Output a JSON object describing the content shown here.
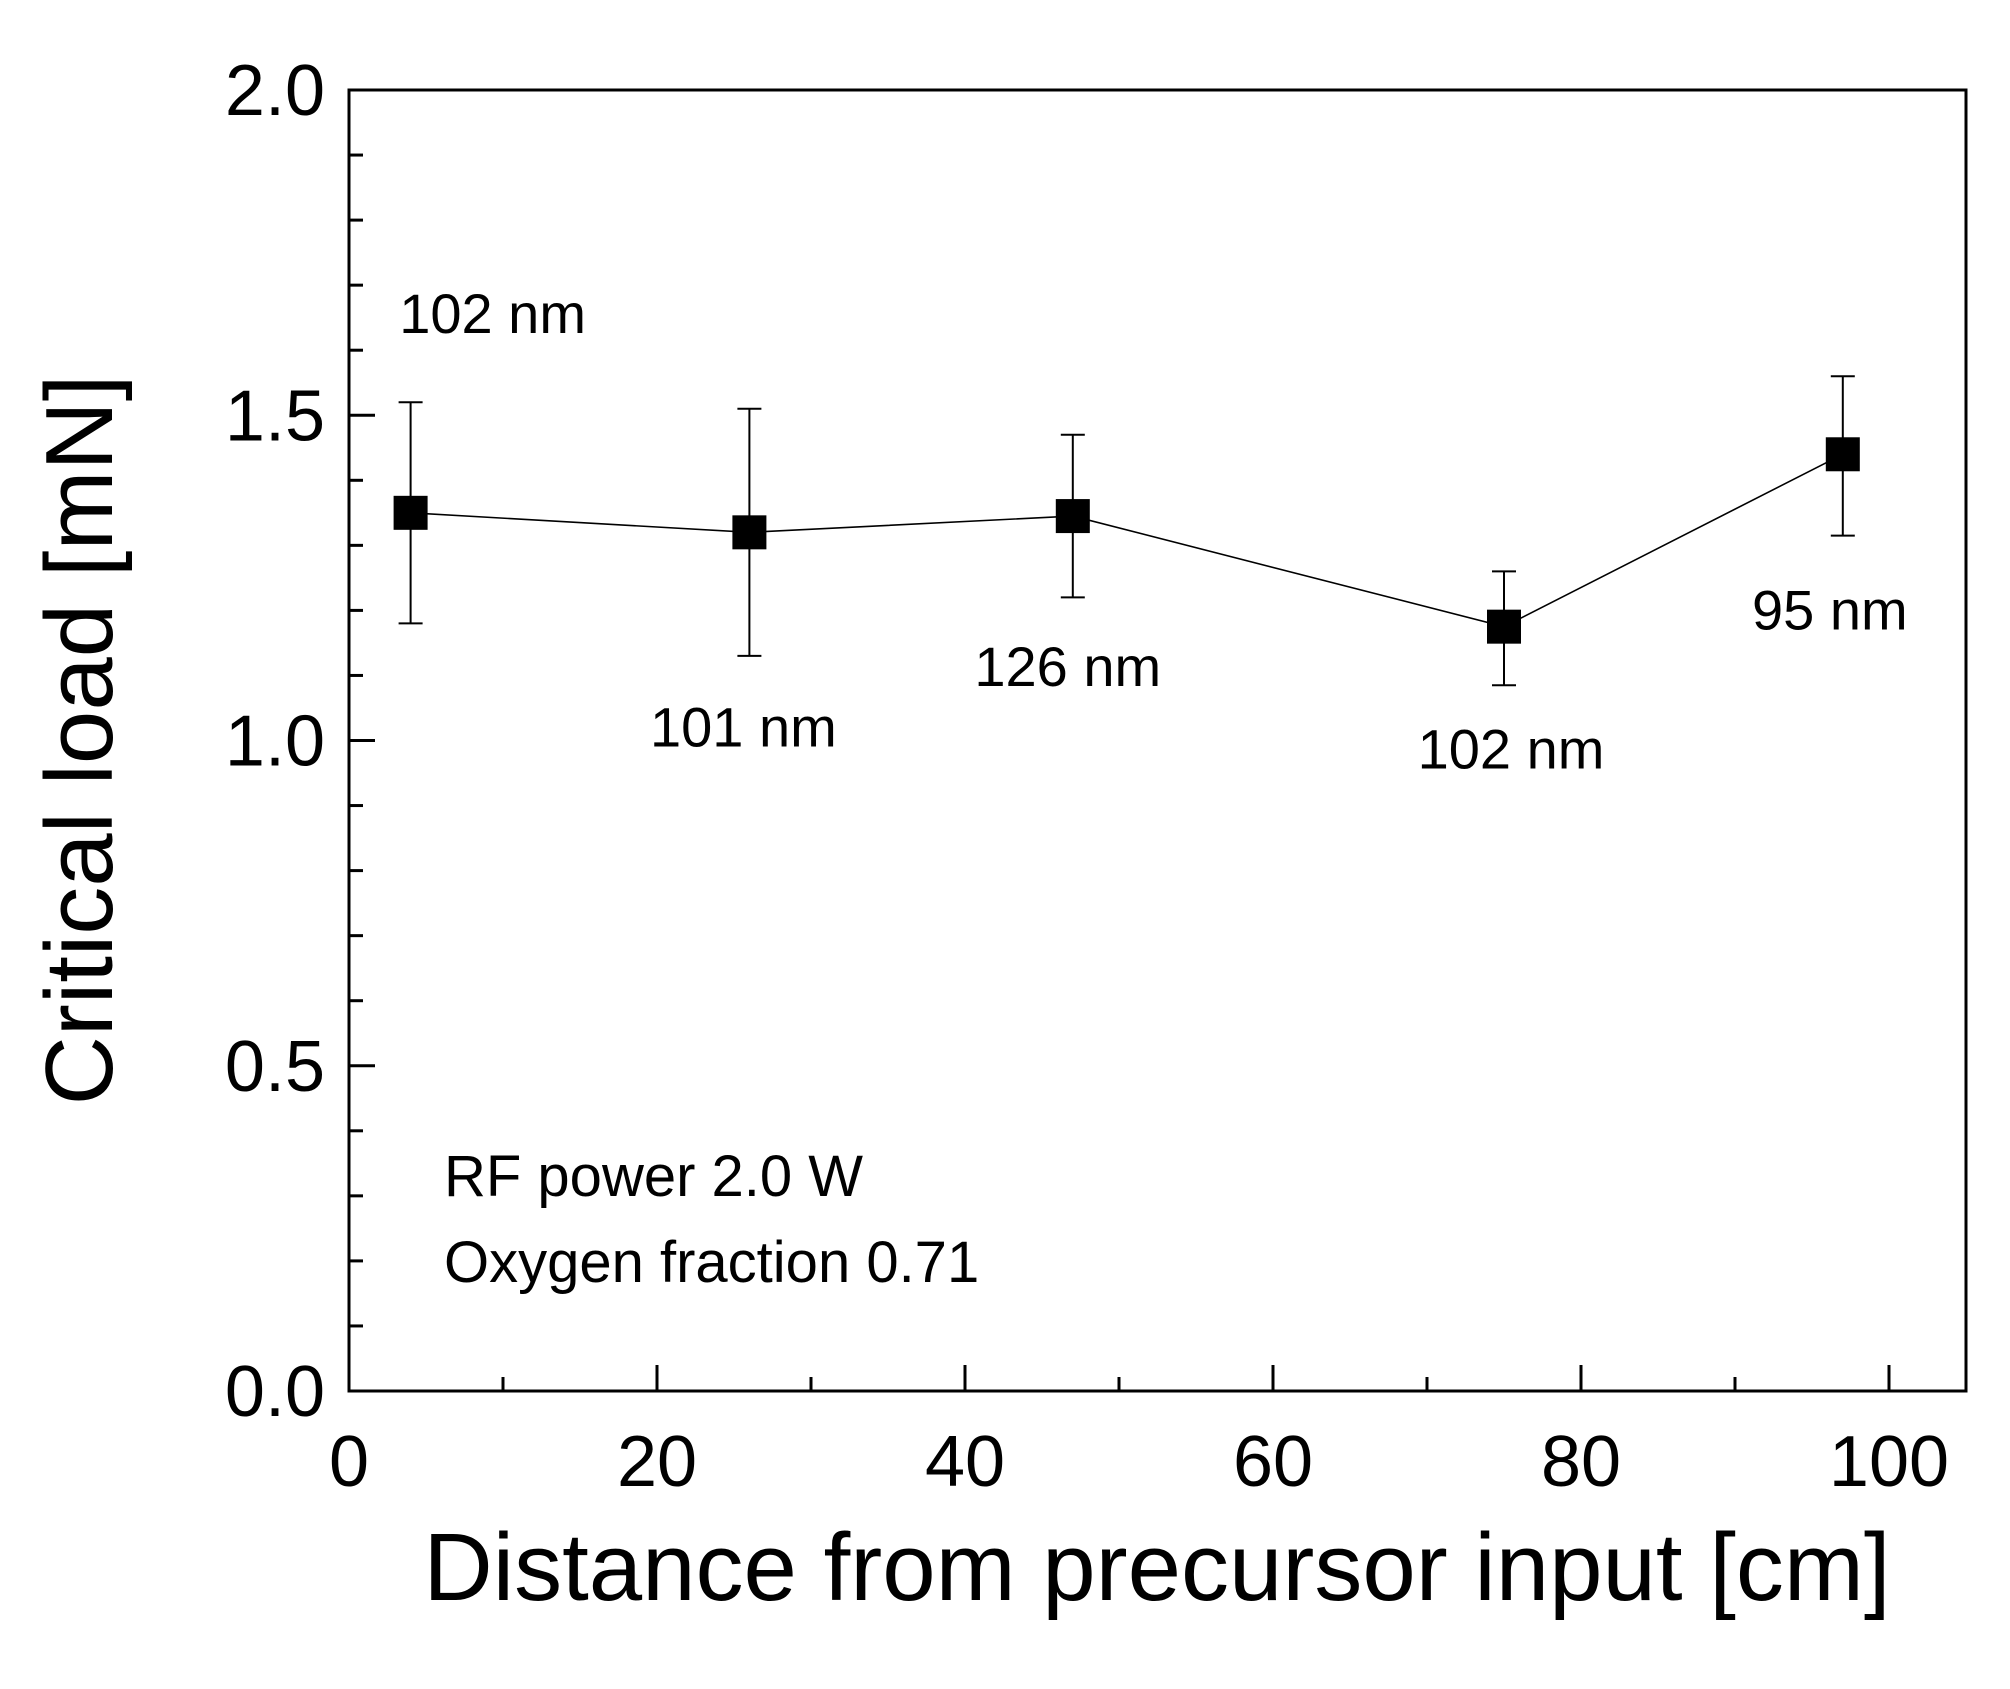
{
  "chart_data": {
    "type": "line",
    "title": "",
    "xlabel": "Distance from precursor input [cm]",
    "ylabel": "Critical load [mN]",
    "xlim": [
      0,
      105
    ],
    "ylim": [
      0.0,
      2.0
    ],
    "x_ticks": [
      0,
      20,
      40,
      60,
      80,
      100
    ],
    "y_ticks": [
      0.0,
      0.5,
      1.0,
      1.5,
      2.0
    ],
    "x_tick_labels": [
      "0",
      "20",
      "40",
      "60",
      "80",
      "100"
    ],
    "y_tick_labels": [
      "0.0",
      "0.5",
      "1.0",
      "1.5",
      "2.0"
    ],
    "x_minor_step": 10,
    "y_minor_step": 0.1,
    "grid": false,
    "series": [
      {
        "name": "Critical load",
        "marker": "square",
        "color": "#000000",
        "x": [
          4,
          26,
          47,
          75,
          97
        ],
        "y": [
          1.35,
          1.32,
          1.345,
          1.175,
          1.44
        ],
        "err_low": [
          0.17,
          0.19,
          0.125,
          0.09,
          0.125
        ],
        "err_high": [
          0.17,
          0.19,
          0.125,
          0.085,
          0.12
        ],
        "point_labels": [
          "102 nm",
          "101 nm",
          "126 nm",
          "102 nm",
          "95 nm"
        ]
      }
    ],
    "annotations": [
      "RF power 2.0 W",
      "Oxygen fraction 0.71"
    ]
  }
}
